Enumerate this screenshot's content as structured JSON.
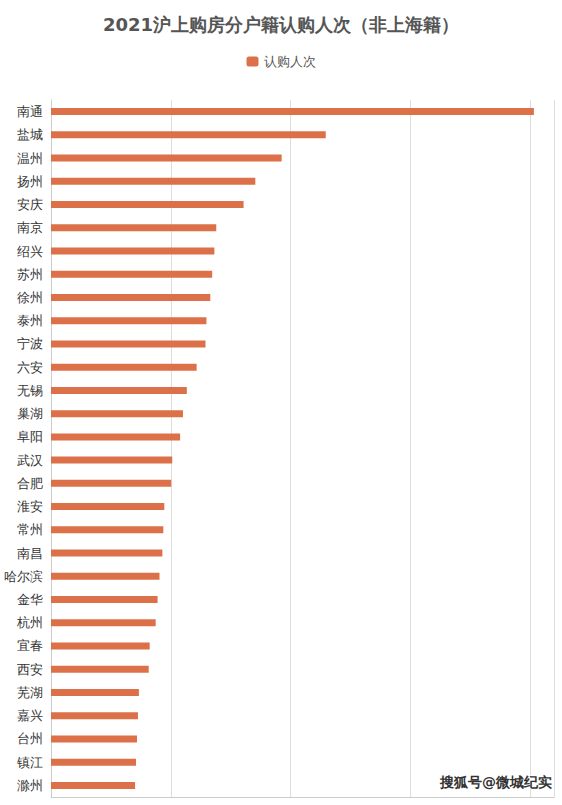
{
  "chart_data": {
    "type": "bar",
    "title": "2021沪上购房分户籍认购人次（非上海籍）",
    "annotation": "搜狐号@微城纪实",
    "orientation": "horizontal",
    "categories": [
      "南通",
      "盐城",
      "温州",
      "扬州",
      "安庆",
      "南京",
      "绍兴",
      "苏州",
      "徐州",
      "泰州",
      "宁波",
      "六安",
      "无锡",
      "巢湖",
      "阜阳",
      "武汉",
      "合肥",
      "淮安",
      "常州",
      "南昌",
      "哈尔滨",
      "金华",
      "杭州",
      "宜春",
      "西安",
      "芜湖",
      "嘉兴",
      "台州",
      "镇江",
      "滁州"
    ],
    "series": [
      {
        "name": "认购人次",
        "color": "#dc7049",
        "values": [
          2016,
          1147,
          963,
          853,
          804,
          690,
          682,
          673,
          665,
          649,
          645,
          608,
          567,
          551,
          539,
          506,
          502,
          473,
          469,
          465,
          453,
          445,
          437,
          412,
          408,
          367,
          363,
          359,
          355,
          351
        ]
      }
    ],
    "xlim": [
      0,
      2100
    ],
    "xticks": [
      0,
      500,
      1000,
      1500,
      2000
    ],
    "grid": true,
    "legend": "top",
    "tick_labels": "y"
  }
}
